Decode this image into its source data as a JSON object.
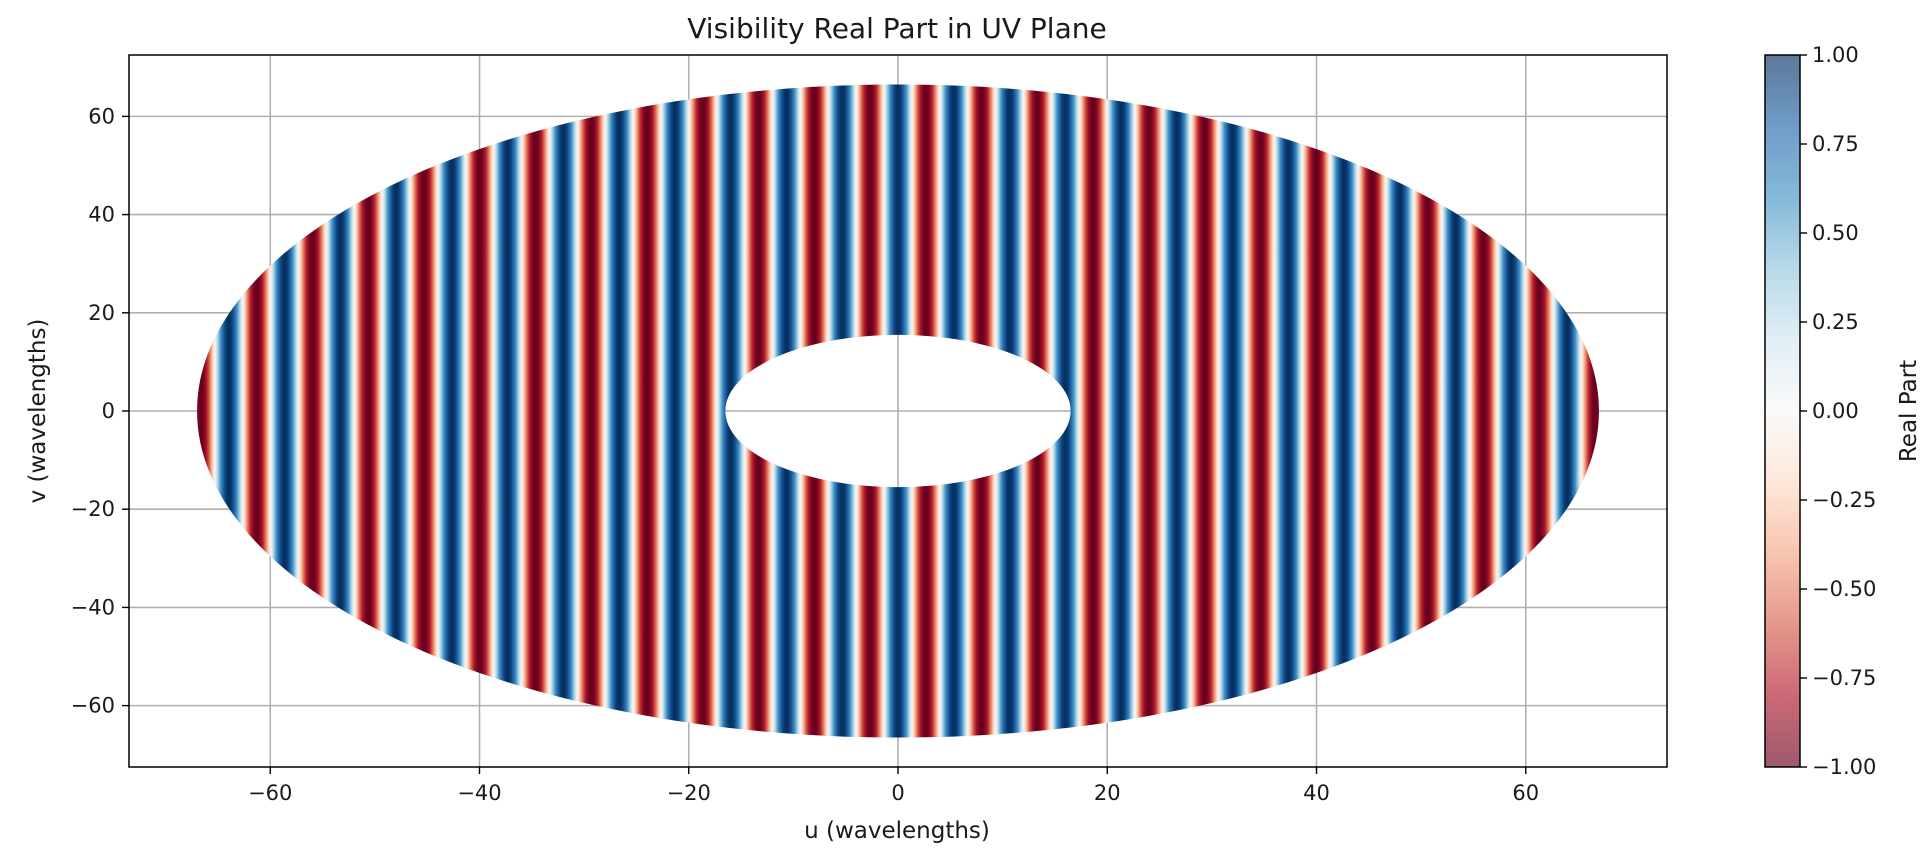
{
  "chart_data": {
    "type": "heatmap",
    "title": "Visibility Real Part in UV Plane",
    "xlabel": "u (wavelengths)",
    "ylabel": "v (wavelengths)",
    "xlim": [
      -73.5,
      73.5
    ],
    "ylim": [
      -72.5,
      72.5
    ],
    "xticks": [
      -60,
      -40,
      -20,
      0,
      20,
      40,
      60
    ],
    "xtick_labels": [
      "−60",
      "−40",
      "−20",
      "0",
      "20",
      "40",
      "60"
    ],
    "yticks": [
      -60,
      -40,
      -20,
      0,
      20,
      40,
      60
    ],
    "ytick_labels": [
      "−60",
      "−40",
      "−20",
      "0",
      "20",
      "40",
      "60"
    ],
    "grid": true,
    "coverage": {
      "shape": "elliptical annulus",
      "outer_u_radius": 67,
      "outer_v_radius": 66.5,
      "inner_u_radius": 16.5,
      "inner_v_radius": 15.5,
      "center": [
        0,
        0
      ]
    },
    "fringe_pattern": {
      "orientation": "vertical",
      "value_at_center": 1.0,
      "fringe_period_u": 5.33
    },
    "colorbar": {
      "label": "Real Part",
      "colormap": "RdBu",
      "alpha": 0.65,
      "range": [
        -1,
        1
      ],
      "ticks": [
        1,
        0.75,
        0.5,
        0.25,
        0,
        -0.25,
        -0.5,
        -0.75,
        -1
      ],
      "tick_labels": [
        "1.00",
        "0.75",
        "0.50",
        "0.25",
        "0.00",
        "−0.25",
        "−0.50",
        "−0.75",
        "−1.00"
      ],
      "color_stops": [
        "#67001f",
        "#b2182b",
        "#d6604d",
        "#f4a582",
        "#fddbc7",
        "#f7f7f7",
        "#d1e5f0",
        "#92c5de",
        "#4393c3",
        "#2166ac",
        "#053061"
      ]
    }
  }
}
